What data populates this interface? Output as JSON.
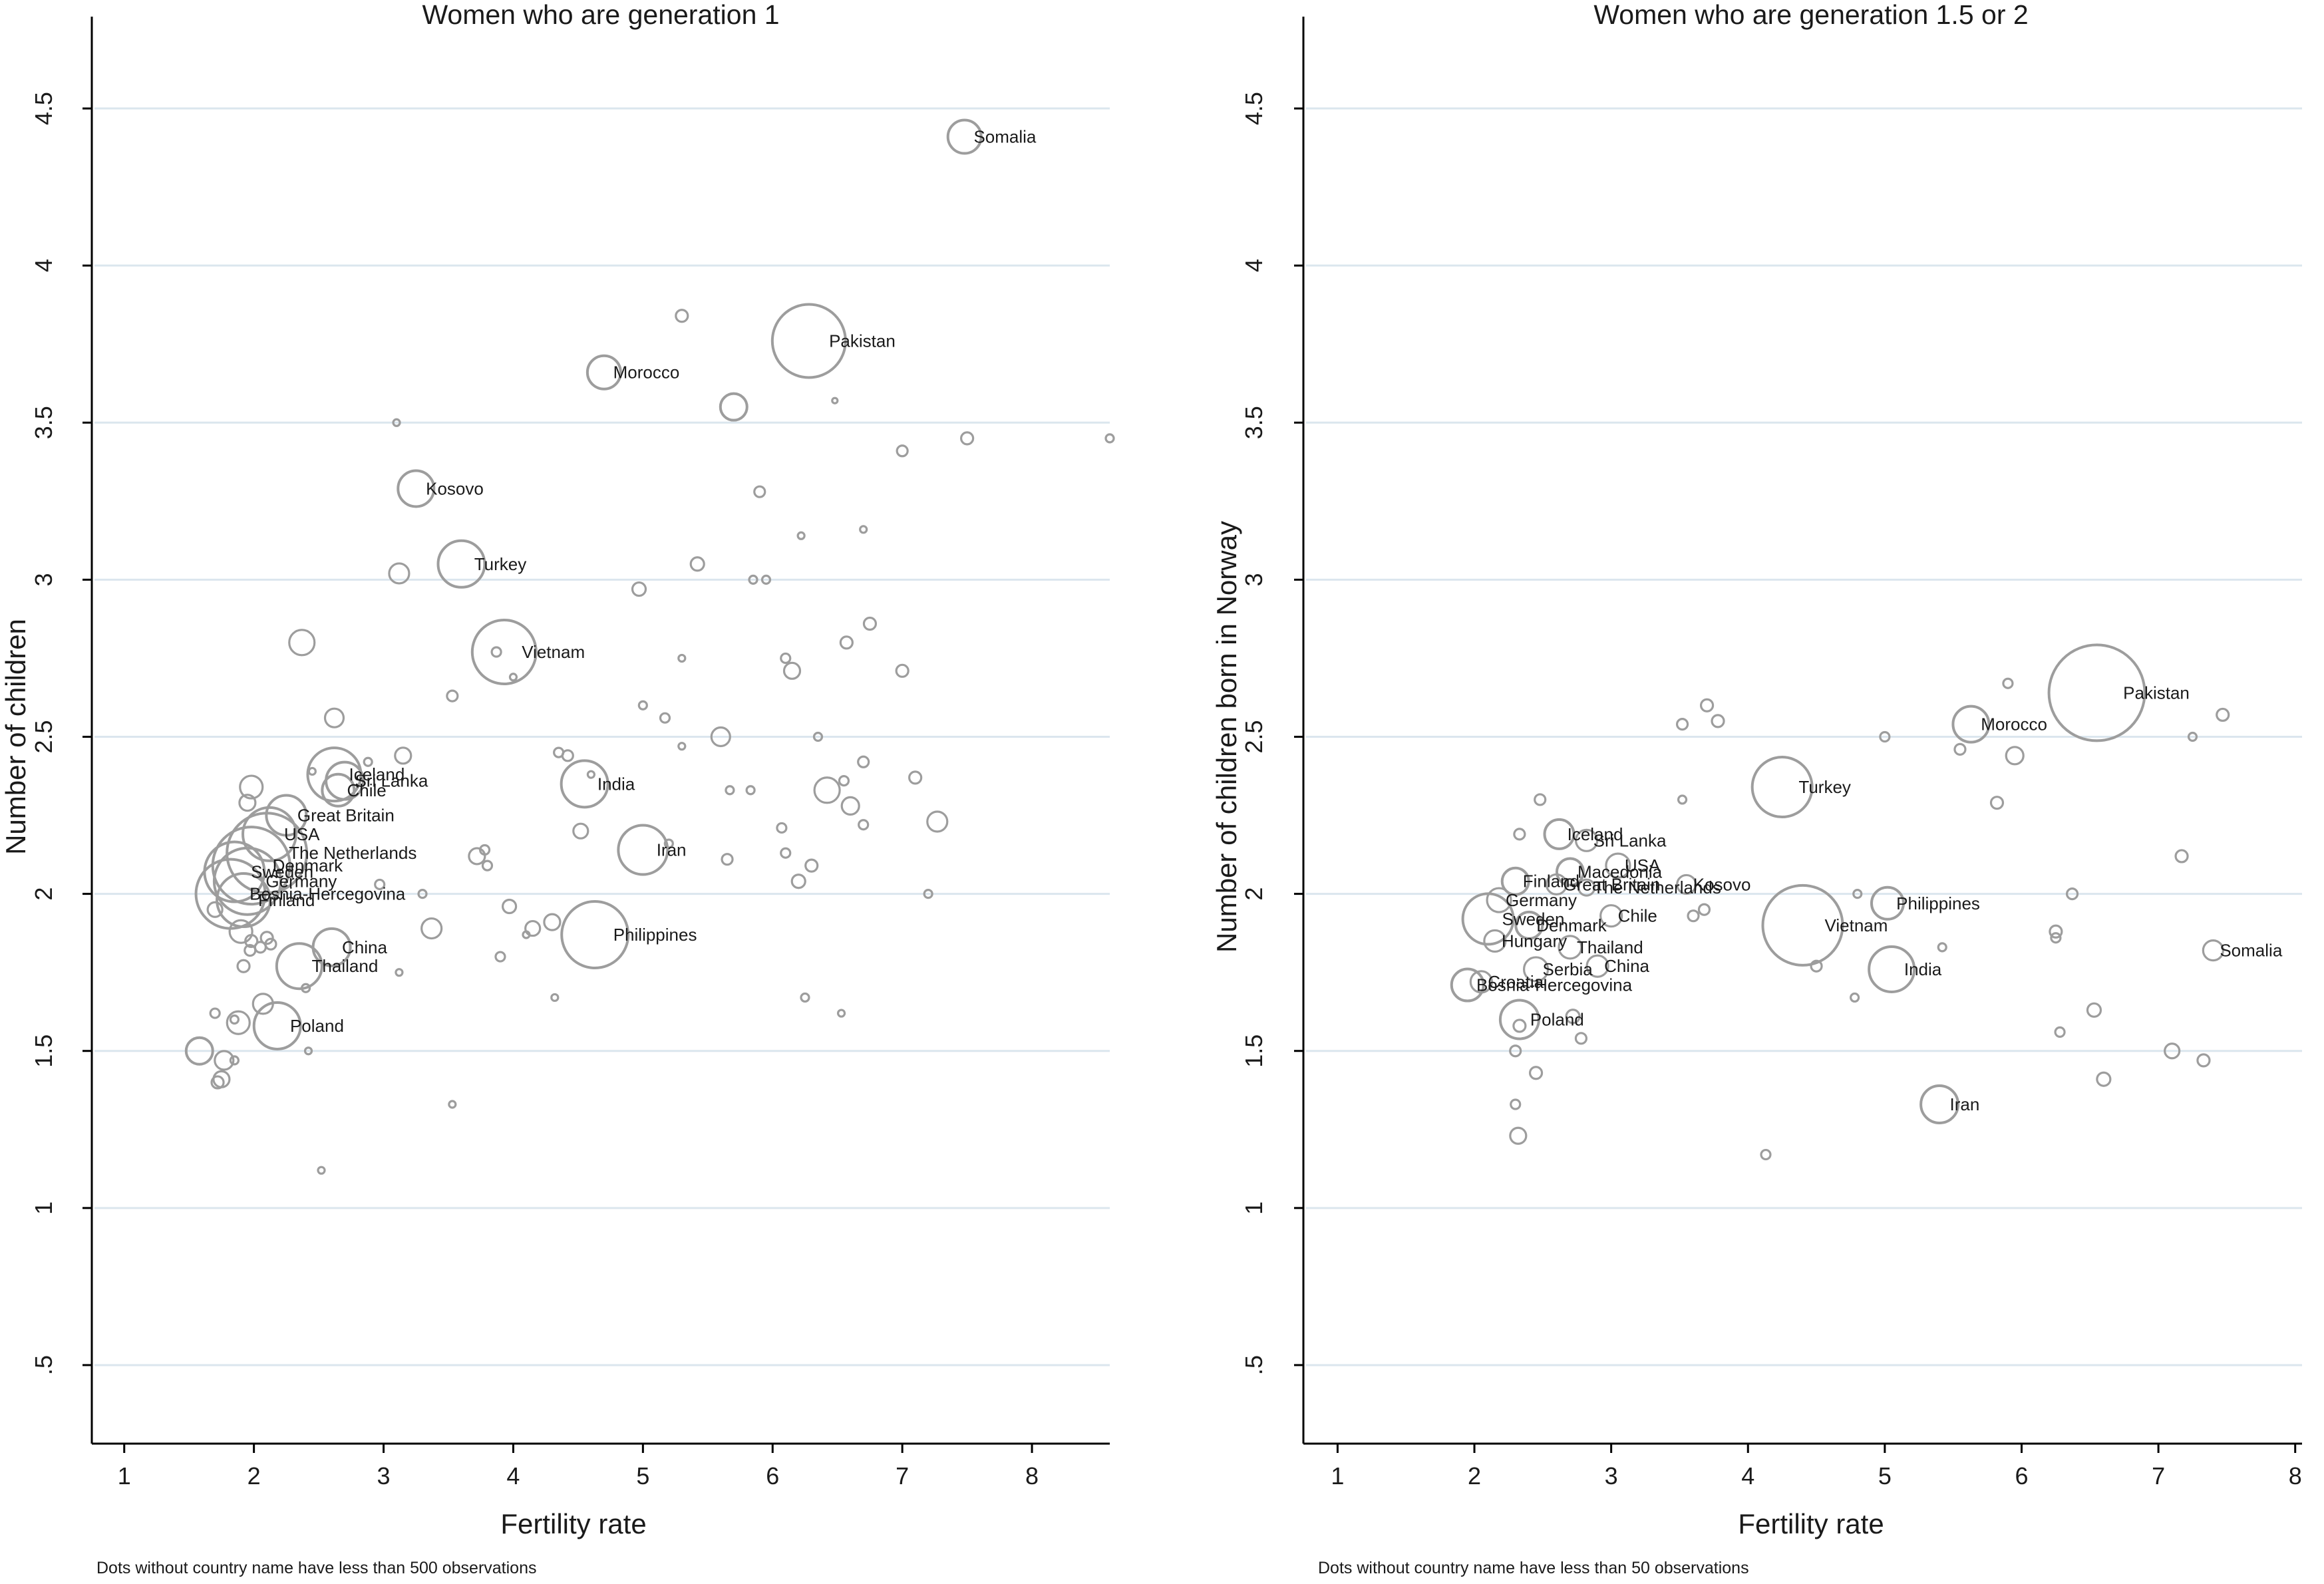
{
  "chart_data": [
    {
      "type": "scatter",
      "title": "Women who are generation 1",
      "xlabel": "Fertility rate",
      "ylabel": "Number of children",
      "note": "Dots without country name have less than 500 observations",
      "xlim": [
        0.75,
        8.6
      ],
      "ylim": [
        0.25,
        4.75
      ],
      "x_ticks": [
        1,
        2,
        3,
        4,
        5,
        6,
        7,
        8
      ],
      "y_ticks": [
        ".5",
        "1",
        "1.5",
        "2",
        "2.5",
        "3",
        "3.5",
        "4",
        "4.5"
      ],
      "grid": "horizontal",
      "bubble_color": "#9d9d9d",
      "points": [
        {
          "x": 7.48,
          "y": 4.41,
          "r": 25,
          "label": "Somalia"
        },
        {
          "x": 6.28,
          "y": 3.76,
          "r": 55,
          "label": "Pakistan"
        },
        {
          "x": 4.7,
          "y": 3.66,
          "r": 25,
          "label": "Morocco"
        },
        {
          "x": 3.25,
          "y": 3.29,
          "r": 27,
          "label": "Kosovo"
        },
        {
          "x": 3.6,
          "y": 3.05,
          "r": 35,
          "label": "Turkey"
        },
        {
          "x": 3.93,
          "y": 2.77,
          "r": 48,
          "label": "Vietnam"
        },
        {
          "x": 4.55,
          "y": 2.35,
          "r": 35,
          "label": "India"
        },
        {
          "x": 5.0,
          "y": 2.14,
          "r": 37,
          "label": "Iran"
        },
        {
          "x": 4.63,
          "y": 1.87,
          "r": 50,
          "label": "Philippines"
        },
        {
          "x": 2.62,
          "y": 2.38,
          "r": 40,
          "label": "Iceland"
        },
        {
          "x": 2.7,
          "y": 2.36,
          "r": 28,
          "label": "Sri Lanka"
        },
        {
          "x": 2.65,
          "y": 2.33,
          "r": 24,
          "label": "Chile"
        },
        {
          "x": 2.25,
          "y": 2.25,
          "r": 30,
          "label": "Great Britain"
        },
        {
          "x": 2.12,
          "y": 2.19,
          "r": 40,
          "label": "USA"
        },
        {
          "x": 2.1,
          "y": 2.13,
          "r": 60,
          "label": "The Netherlands"
        },
        {
          "x": 1.98,
          "y": 2.09,
          "r": 58,
          "label": "Denmark"
        },
        {
          "x": 1.85,
          "y": 2.07,
          "r": 45,
          "label": "Sweden"
        },
        {
          "x": 1.95,
          "y": 2.04,
          "r": 50,
          "label": "Germany"
        },
        {
          "x": 1.82,
          "y": 2.0,
          "r": 52,
          "label": "Bosnia-Hercegovina"
        },
        {
          "x": 1.92,
          "y": 1.98,
          "r": 40,
          "label": "Finland"
        },
        {
          "x": 2.6,
          "y": 1.83,
          "r": 28,
          "label": "China"
        },
        {
          "x": 2.35,
          "y": 1.77,
          "r": 34,
          "label": "Thailand"
        },
        {
          "x": 2.18,
          "y": 1.58,
          "r": 35,
          "label": "Poland"
        },
        {
          "x": 5.3,
          "y": 3.84,
          "r": 9
        },
        {
          "x": 5.7,
          "y": 3.55,
          "r": 20
        },
        {
          "x": 6.48,
          "y": 3.57,
          "r": 4
        },
        {
          "x": 3.1,
          "y": 3.5,
          "r": 5
        },
        {
          "x": 7.0,
          "y": 3.41,
          "r": 8
        },
        {
          "x": 7.5,
          "y": 3.45,
          "r": 9
        },
        {
          "x": 8.6,
          "y": 3.45,
          "r": 6
        },
        {
          "x": 5.9,
          "y": 3.28,
          "r": 8
        },
        {
          "x": 6.22,
          "y": 3.14,
          "r": 5
        },
        {
          "x": 6.7,
          "y": 3.16,
          "r": 5
        },
        {
          "x": 3.12,
          "y": 3.02,
          "r": 15
        },
        {
          "x": 5.42,
          "y": 3.05,
          "r": 10
        },
        {
          "x": 5.85,
          "y": 3.0,
          "r": 6
        },
        {
          "x": 5.95,
          "y": 3.0,
          "r": 6
        },
        {
          "x": 4.97,
          "y": 2.97,
          "r": 10
        },
        {
          "x": 6.75,
          "y": 2.86,
          "r": 9
        },
        {
          "x": 2.37,
          "y": 2.8,
          "r": 19
        },
        {
          "x": 6.57,
          "y": 2.8,
          "r": 9
        },
        {
          "x": 3.87,
          "y": 2.77,
          "r": 7
        },
        {
          "x": 5.3,
          "y": 2.75,
          "r": 5
        },
        {
          "x": 6.1,
          "y": 2.75,
          "r": 7
        },
        {
          "x": 6.15,
          "y": 2.71,
          "r": 12
        },
        {
          "x": 7.0,
          "y": 2.71,
          "r": 9
        },
        {
          "x": 4.0,
          "y": 2.69,
          "r": 5
        },
        {
          "x": 3.53,
          "y": 2.63,
          "r": 8
        },
        {
          "x": 5.0,
          "y": 2.6,
          "r": 6
        },
        {
          "x": 5.17,
          "y": 2.56,
          "r": 7
        },
        {
          "x": 2.62,
          "y": 2.56,
          "r": 14
        },
        {
          "x": 5.6,
          "y": 2.5,
          "r": 14
        },
        {
          "x": 6.35,
          "y": 2.5,
          "r": 6
        },
        {
          "x": 5.3,
          "y": 2.47,
          "r": 5
        },
        {
          "x": 4.35,
          "y": 2.45,
          "r": 7
        },
        {
          "x": 4.42,
          "y": 2.44,
          "r": 8
        },
        {
          "x": 3.15,
          "y": 2.44,
          "r": 12
        },
        {
          "x": 2.45,
          "y": 2.39,
          "r": 5
        },
        {
          "x": 6.7,
          "y": 2.42,
          "r": 8
        },
        {
          "x": 2.88,
          "y": 2.42,
          "r": 6
        },
        {
          "x": 7.1,
          "y": 2.37,
          "r": 9
        },
        {
          "x": 4.6,
          "y": 2.38,
          "r": 5
        },
        {
          "x": 6.55,
          "y": 2.36,
          "r": 7
        },
        {
          "x": 1.98,
          "y": 2.34,
          "r": 17
        },
        {
          "x": 5.67,
          "y": 2.33,
          "r": 6
        },
        {
          "x": 5.83,
          "y": 2.33,
          "r": 6
        },
        {
          "x": 6.42,
          "y": 2.33,
          "r": 19
        },
        {
          "x": 1.95,
          "y": 2.29,
          "r": 12
        },
        {
          "x": 6.6,
          "y": 2.28,
          "r": 13
        },
        {
          "x": 7.27,
          "y": 2.23,
          "r": 15
        },
        {
          "x": 6.7,
          "y": 2.22,
          "r": 7
        },
        {
          "x": 6.07,
          "y": 2.21,
          "r": 7
        },
        {
          "x": 4.52,
          "y": 2.2,
          "r": 11
        },
        {
          "x": 5.2,
          "y": 2.16,
          "r": 6
        },
        {
          "x": 3.78,
          "y": 2.14,
          "r": 7
        },
        {
          "x": 3.72,
          "y": 2.12,
          "r": 12
        },
        {
          "x": 6.1,
          "y": 2.13,
          "r": 7
        },
        {
          "x": 5.65,
          "y": 2.11,
          "r": 8
        },
        {
          "x": 3.8,
          "y": 2.09,
          "r": 7
        },
        {
          "x": 6.3,
          "y": 2.09,
          "r": 9
        },
        {
          "x": 6.2,
          "y": 2.04,
          "r": 10
        },
        {
          "x": 2.97,
          "y": 2.03,
          "r": 7
        },
        {
          "x": 3.3,
          "y": 2.0,
          "r": 6
        },
        {
          "x": 7.2,
          "y": 2.0,
          "r": 6
        },
        {
          "x": 3.97,
          "y": 1.96,
          "r": 10
        },
        {
          "x": 1.7,
          "y": 1.95,
          "r": 11
        },
        {
          "x": 4.3,
          "y": 1.91,
          "r": 12
        },
        {
          "x": 4.15,
          "y": 1.89,
          "r": 11
        },
        {
          "x": 3.37,
          "y": 1.89,
          "r": 15
        },
        {
          "x": 4.1,
          "y": 1.87,
          "r": 5
        },
        {
          "x": 1.9,
          "y": 1.88,
          "r": 17
        },
        {
          "x": 2.1,
          "y": 1.86,
          "r": 9
        },
        {
          "x": 1.98,
          "y": 1.85,
          "r": 9
        },
        {
          "x": 2.13,
          "y": 1.84,
          "r": 8
        },
        {
          "x": 2.05,
          "y": 1.83,
          "r": 8
        },
        {
          "x": 1.97,
          "y": 1.82,
          "r": 8
        },
        {
          "x": 3.9,
          "y": 1.8,
          "r": 7
        },
        {
          "x": 1.92,
          "y": 1.77,
          "r": 9
        },
        {
          "x": 3.12,
          "y": 1.75,
          "r": 5
        },
        {
          "x": 2.4,
          "y": 1.7,
          "r": 6
        },
        {
          "x": 2.07,
          "y": 1.65,
          "r": 15
        },
        {
          "x": 4.32,
          "y": 1.67,
          "r": 5
        },
        {
          "x": 6.25,
          "y": 1.67,
          "r": 6
        },
        {
          "x": 1.7,
          "y": 1.62,
          "r": 7
        },
        {
          "x": 6.53,
          "y": 1.62,
          "r": 5
        },
        {
          "x": 1.88,
          "y": 1.59,
          "r": 17
        },
        {
          "x": 1.85,
          "y": 1.6,
          "r": 6
        },
        {
          "x": 1.58,
          "y": 1.5,
          "r": 20
        },
        {
          "x": 2.42,
          "y": 1.5,
          "r": 5
        },
        {
          "x": 1.77,
          "y": 1.47,
          "r": 14
        },
        {
          "x": 1.85,
          "y": 1.47,
          "r": 6
        },
        {
          "x": 1.75,
          "y": 1.41,
          "r": 12
        },
        {
          "x": 1.72,
          "y": 1.4,
          "r": 9
        },
        {
          "x": 3.53,
          "y": 1.33,
          "r": 5
        },
        {
          "x": 2.52,
          "y": 1.12,
          "r": 5
        }
      ]
    },
    {
      "type": "scatter",
      "title": "Women who are generation 1.5 or 2",
      "xlabel": "Fertility rate",
      "ylabel": "Number of children born in Norway",
      "note": "Dots without country name have less than 50 observations",
      "xlim": [
        0.75,
        8.05
      ],
      "ylim": [
        0.25,
        4.75
      ],
      "x_ticks": [
        1,
        2,
        3,
        4,
        5,
        6,
        7,
        8
      ],
      "y_ticks": [
        ".5",
        "1",
        "1.5",
        "2",
        "2.5",
        "3",
        "3.5",
        "4",
        "4.5"
      ],
      "grid": "horizontal",
      "bubble_color": "#9d9d9d",
      "points": [
        {
          "x": 6.55,
          "y": 2.64,
          "r": 72,
          "label": "Pakistan"
        },
        {
          "x": 5.63,
          "y": 2.54,
          "r": 27,
          "label": "Morocco"
        },
        {
          "x": 4.25,
          "y": 2.34,
          "r": 45,
          "label": "Turkey"
        },
        {
          "x": 2.62,
          "y": 2.19,
          "r": 22,
          "label": "Iceland"
        },
        {
          "x": 2.82,
          "y": 2.17,
          "r": 16,
          "label": "Sri Lanka"
        },
        {
          "x": 3.05,
          "y": 2.09,
          "r": 18,
          "label": "USA"
        },
        {
          "x": 2.7,
          "y": 2.07,
          "r": 20,
          "label": "Macedonia"
        },
        {
          "x": 2.3,
          "y": 2.04,
          "r": 20,
          "label": "Finland"
        },
        {
          "x": 2.6,
          "y": 2.03,
          "r": 15,
          "label": "Great Britain"
        },
        {
          "x": 2.82,
          "y": 2.02,
          "r": 12,
          "label": "The Netherlands"
        },
        {
          "x": 3.55,
          "y": 2.03,
          "r": 14,
          "label": "Kosovo"
        },
        {
          "x": 5.02,
          "y": 1.97,
          "r": 24,
          "label": "Philippines"
        },
        {
          "x": 2.18,
          "y": 1.98,
          "r": 18,
          "label": "Germany"
        },
        {
          "x": 3.0,
          "y": 1.93,
          "r": 16,
          "label": "Chile"
        },
        {
          "x": 2.1,
          "y": 1.92,
          "r": 38,
          "label": "Sweden"
        },
        {
          "x": 2.4,
          "y": 1.9,
          "r": 20,
          "label": "Denmark"
        },
        {
          "x": 4.4,
          "y": 1.9,
          "r": 60,
          "label": "Vietnam"
        },
        {
          "x": 2.15,
          "y": 1.85,
          "r": 16,
          "label": "Hungary"
        },
        {
          "x": 2.7,
          "y": 1.83,
          "r": 17,
          "label": "Thailand"
        },
        {
          "x": 2.45,
          "y": 1.76,
          "r": 18,
          "label": "Serbia"
        },
        {
          "x": 2.9,
          "y": 1.77,
          "r": 16,
          "label": "China"
        },
        {
          "x": 5.05,
          "y": 1.76,
          "r": 34,
          "label": "India"
        },
        {
          "x": 7.4,
          "y": 1.82,
          "r": 15,
          "label": "Somalia"
        },
        {
          "x": 1.95,
          "y": 1.71,
          "r": 24,
          "label": "Bosnia-Hercegovina"
        },
        {
          "x": 2.05,
          "y": 1.72,
          "r": 16,
          "label": "Croatia"
        },
        {
          "x": 2.33,
          "y": 1.6,
          "r": 29,
          "label": "Poland"
        },
        {
          "x": 5.4,
          "y": 1.33,
          "r": 28,
          "label": "Iran"
        },
        {
          "x": 3.52,
          "y": 2.54,
          "r": 8
        },
        {
          "x": 3.7,
          "y": 2.6,
          "r": 9
        },
        {
          "x": 3.78,
          "y": 2.55,
          "r": 9
        },
        {
          "x": 5.9,
          "y": 2.67,
          "r": 7
        },
        {
          "x": 7.47,
          "y": 2.57,
          "r": 9
        },
        {
          "x": 7.25,
          "y": 2.5,
          "r": 6
        },
        {
          "x": 5.0,
          "y": 2.5,
          "r": 7
        },
        {
          "x": 5.55,
          "y": 2.46,
          "r": 8
        },
        {
          "x": 5.95,
          "y": 2.44,
          "r": 13
        },
        {
          "x": 2.48,
          "y": 2.3,
          "r": 8
        },
        {
          "x": 3.52,
          "y": 2.3,
          "r": 6
        },
        {
          "x": 5.82,
          "y": 2.29,
          "r": 9
        },
        {
          "x": 2.33,
          "y": 2.19,
          "r": 8
        },
        {
          "x": 7.17,
          "y": 2.12,
          "r": 9
        },
        {
          "x": 4.8,
          "y": 2.0,
          "r": 6
        },
        {
          "x": 6.37,
          "y": 2.0,
          "r": 8
        },
        {
          "x": 3.68,
          "y": 1.95,
          "r": 8
        },
        {
          "x": 3.6,
          "y": 1.93,
          "r": 8
        },
        {
          "x": 6.25,
          "y": 1.88,
          "r": 9
        },
        {
          "x": 6.25,
          "y": 1.86,
          "r": 7
        },
        {
          "x": 5.42,
          "y": 1.83,
          "r": 6
        },
        {
          "x": 4.5,
          "y": 1.77,
          "r": 8
        },
        {
          "x": 4.78,
          "y": 1.67,
          "r": 6
        },
        {
          "x": 6.53,
          "y": 1.63,
          "r": 10
        },
        {
          "x": 6.28,
          "y": 1.56,
          "r": 7
        },
        {
          "x": 2.33,
          "y": 1.58,
          "r": 9
        },
        {
          "x": 2.78,
          "y": 1.54,
          "r": 8
        },
        {
          "x": 2.72,
          "y": 1.61,
          "r": 10
        },
        {
          "x": 7.1,
          "y": 1.5,
          "r": 11
        },
        {
          "x": 7.33,
          "y": 1.47,
          "r": 9
        },
        {
          "x": 2.3,
          "y": 1.5,
          "r": 8
        },
        {
          "x": 2.45,
          "y": 1.43,
          "r": 9
        },
        {
          "x": 6.6,
          "y": 1.41,
          "r": 10
        },
        {
          "x": 2.3,
          "y": 1.33,
          "r": 7
        },
        {
          "x": 2.32,
          "y": 1.23,
          "r": 12
        },
        {
          "x": 4.13,
          "y": 1.17,
          "r": 7
        }
      ]
    }
  ]
}
